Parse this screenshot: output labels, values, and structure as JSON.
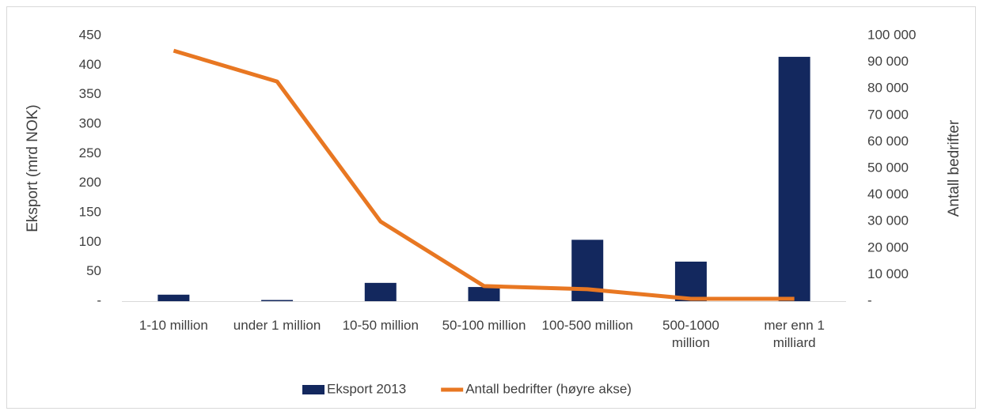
{
  "chart_data": {
    "type": "bar_line",
    "y_label": "Eksport (mrd NOK)",
    "y2_label": "Antall bedrifter",
    "categories": [
      "1-10 million",
      "under 1 million",
      "10-50 million",
      "50-100 million",
      "100-500 million",
      "500-1000 million",
      "mer enn 1 milliard"
    ],
    "series": [
      {
        "name": "Eksport 2013",
        "type": "bar",
        "color": "#13285e",
        "values": [
          11,
          2,
          31,
          24,
          104,
          67,
          414
        ]
      },
      {
        "name": "Antall bedrifter (høyre akse)",
        "type": "line",
        "axis": "y2",
        "color": "#e87722",
        "values": [
          94300,
          82700,
          30000,
          5700,
          4500,
          900,
          900
        ]
      }
    ],
    "ylim": [
      0,
      450
    ],
    "yticks": [
      {
        "value": 0,
        "label": "-"
      },
      50,
      100,
      150,
      200,
      250,
      300,
      350,
      400,
      450
    ],
    "y2lim": [
      0,
      100000
    ],
    "y2ticks": [
      {
        "value": 0,
        "label": "-"
      },
      {
        "value": 10000,
        "label": "10 000"
      },
      {
        "value": 20000,
        "label": "20 000"
      },
      {
        "value": 30000,
        "label": "30 000"
      },
      {
        "value": 40000,
        "label": "40 000"
      },
      {
        "value": 50000,
        "label": "50 000"
      },
      {
        "value": 60000,
        "label": "60 000"
      },
      {
        "value": 70000,
        "label": "70 000"
      },
      {
        "value": 80000,
        "label": "80 000"
      },
      {
        "value": 90000,
        "label": "90 000"
      },
      {
        "value": 100000,
        "label": "100 000"
      }
    ],
    "grid": false,
    "legend": "bottom"
  }
}
